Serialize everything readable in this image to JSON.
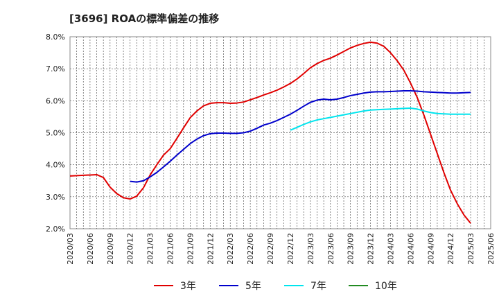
{
  "chart_data": {
    "type": "line",
    "title": "[3696]  ROAの標準偏差の推移",
    "xlabel": "",
    "ylabel": "",
    "ylim": [
      2.0,
      8.0
    ],
    "yticks": [
      "2.0%",
      "3.0%",
      "4.0%",
      "5.0%",
      "6.0%",
      "7.0%",
      "8.0%"
    ],
    "x_ticks": [
      "2020/03",
      "2020/06",
      "2020/09",
      "2020/12",
      "2021/03",
      "2021/06",
      "2021/09",
      "2021/12",
      "2022/03",
      "2022/06",
      "2022/09",
      "2022/12",
      "2023/03",
      "2023/06",
      "2023/09",
      "2023/12",
      "2024/03",
      "2024/06",
      "2024/09",
      "2024/12",
      "2025/03",
      "2025/06"
    ],
    "grid": true,
    "legend_position": "bottom",
    "series": [
      {
        "name": "3年",
        "color": "#e00000",
        "points": [
          [
            "2020/03",
            3.65
          ],
          [
            "2020/04",
            3.66
          ],
          [
            "2020/05",
            3.67
          ],
          [
            "2020/06",
            3.68
          ],
          [
            "2020/07",
            3.69
          ],
          [
            "2020/08",
            3.6
          ],
          [
            "2020/09",
            3.3
          ],
          [
            "2020/10",
            3.1
          ],
          [
            "2020/11",
            2.97
          ],
          [
            "2020/12",
            2.93
          ],
          [
            "2021/01",
            3.02
          ],
          [
            "2021/02",
            3.28
          ],
          [
            "2021/03",
            3.68
          ],
          [
            "2021/04",
            4.0
          ],
          [
            "2021/05",
            4.3
          ],
          [
            "2021/06",
            4.5
          ],
          [
            "2021/07",
            4.82
          ],
          [
            "2021/08",
            5.15
          ],
          [
            "2021/09",
            5.47
          ],
          [
            "2021/10",
            5.68
          ],
          [
            "2021/11",
            5.84
          ],
          [
            "2021/12",
            5.92
          ],
          [
            "2022/01",
            5.94
          ],
          [
            "2022/02",
            5.94
          ],
          [
            "2022/03",
            5.92
          ],
          [
            "2022/04",
            5.93
          ],
          [
            "2022/05",
            5.96
          ],
          [
            "2022/06",
            6.03
          ],
          [
            "2022/07",
            6.1
          ],
          [
            "2022/08",
            6.18
          ],
          [
            "2022/09",
            6.25
          ],
          [
            "2022/10",
            6.33
          ],
          [
            "2022/11",
            6.43
          ],
          [
            "2022/12",
            6.54
          ],
          [
            "2023/01",
            6.68
          ],
          [
            "2023/02",
            6.85
          ],
          [
            "2023/03",
            7.03
          ],
          [
            "2023/04",
            7.16
          ],
          [
            "2023/05",
            7.26
          ],
          [
            "2023/06",
            7.33
          ],
          [
            "2023/07",
            7.43
          ],
          [
            "2023/08",
            7.54
          ],
          [
            "2023/09",
            7.65
          ],
          [
            "2023/10",
            7.73
          ],
          [
            "2023/11",
            7.79
          ],
          [
            "2023/12",
            7.83
          ],
          [
            "2024/01",
            7.8
          ],
          [
            "2024/02",
            7.7
          ],
          [
            "2024/03",
            7.5
          ],
          [
            "2024/04",
            7.25
          ],
          [
            "2024/05",
            6.95
          ],
          [
            "2024/06",
            6.55
          ],
          [
            "2024/07",
            6.1
          ],
          [
            "2024/08",
            5.55
          ],
          [
            "2024/09",
            4.95
          ],
          [
            "2024/10",
            4.35
          ],
          [
            "2024/11",
            3.75
          ],
          [
            "2024/12",
            3.2
          ],
          [
            "2025/01",
            2.78
          ],
          [
            "2025/02",
            2.43
          ],
          [
            "2025/03",
            2.17
          ]
        ]
      },
      {
        "name": "5年",
        "color": "#0000cc",
        "points": [
          [
            "2020/12",
            3.48
          ],
          [
            "2021/01",
            3.46
          ],
          [
            "2021/02",
            3.5
          ],
          [
            "2021/03",
            3.62
          ],
          [
            "2021/04",
            3.76
          ],
          [
            "2021/05",
            3.93
          ],
          [
            "2021/06",
            4.11
          ],
          [
            "2021/07",
            4.3
          ],
          [
            "2021/08",
            4.48
          ],
          [
            "2021/09",
            4.66
          ],
          [
            "2021/10",
            4.8
          ],
          [
            "2021/11",
            4.91
          ],
          [
            "2021/12",
            4.97
          ],
          [
            "2022/01",
            4.99
          ],
          [
            "2022/02",
            4.99
          ],
          [
            "2022/03",
            4.98
          ],
          [
            "2022/04",
            4.98
          ],
          [
            "2022/05",
            5.0
          ],
          [
            "2022/06",
            5.05
          ],
          [
            "2022/07",
            5.14
          ],
          [
            "2022/08",
            5.24
          ],
          [
            "2022/09",
            5.3
          ],
          [
            "2022/10",
            5.38
          ],
          [
            "2022/11",
            5.48
          ],
          [
            "2022/12",
            5.58
          ],
          [
            "2023/01",
            5.7
          ],
          [
            "2023/02",
            5.83
          ],
          [
            "2023/03",
            5.95
          ],
          [
            "2023/04",
            6.02
          ],
          [
            "2023/05",
            6.05
          ],
          [
            "2023/06",
            6.03
          ],
          [
            "2023/07",
            6.05
          ],
          [
            "2023/08",
            6.1
          ],
          [
            "2023/09",
            6.16
          ],
          [
            "2023/10",
            6.2
          ],
          [
            "2023/11",
            6.24
          ],
          [
            "2023/12",
            6.27
          ],
          [
            "2024/01",
            6.28
          ],
          [
            "2024/02",
            6.28
          ],
          [
            "2024/03",
            6.29
          ],
          [
            "2024/04",
            6.3
          ],
          [
            "2024/05",
            6.31
          ],
          [
            "2024/06",
            6.31
          ],
          [
            "2024/07",
            6.3
          ],
          [
            "2024/08",
            6.28
          ],
          [
            "2024/09",
            6.27
          ],
          [
            "2024/10",
            6.26
          ],
          [
            "2024/11",
            6.25
          ],
          [
            "2024/12",
            6.24
          ],
          [
            "2025/01",
            6.24
          ],
          [
            "2025/02",
            6.25
          ],
          [
            "2025/03",
            6.26
          ]
        ]
      },
      {
        "name": "7年",
        "color": "#00e5ee",
        "points": [
          [
            "2022/12",
            5.08
          ],
          [
            "2023/01",
            5.17
          ],
          [
            "2023/02",
            5.26
          ],
          [
            "2023/03",
            5.34
          ],
          [
            "2023/04",
            5.4
          ],
          [
            "2023/05",
            5.44
          ],
          [
            "2023/06",
            5.48
          ],
          [
            "2023/07",
            5.52
          ],
          [
            "2023/08",
            5.56
          ],
          [
            "2023/09",
            5.6
          ],
          [
            "2023/10",
            5.64
          ],
          [
            "2023/11",
            5.68
          ],
          [
            "2023/12",
            5.71
          ],
          [
            "2024/01",
            5.72
          ],
          [
            "2024/02",
            5.73
          ],
          [
            "2024/03",
            5.74
          ],
          [
            "2024/04",
            5.75
          ],
          [
            "2024/05",
            5.76
          ],
          [
            "2024/06",
            5.77
          ],
          [
            "2024/07",
            5.74
          ],
          [
            "2024/08",
            5.68
          ],
          [
            "2024/09",
            5.63
          ],
          [
            "2024/10",
            5.6
          ],
          [
            "2024/11",
            5.59
          ],
          [
            "2024/12",
            5.58
          ],
          [
            "2025/01",
            5.58
          ],
          [
            "2025/02",
            5.58
          ],
          [
            "2025/03",
            5.58
          ]
        ]
      },
      {
        "name": "10年",
        "color": "#228b22",
        "points": []
      }
    ]
  }
}
